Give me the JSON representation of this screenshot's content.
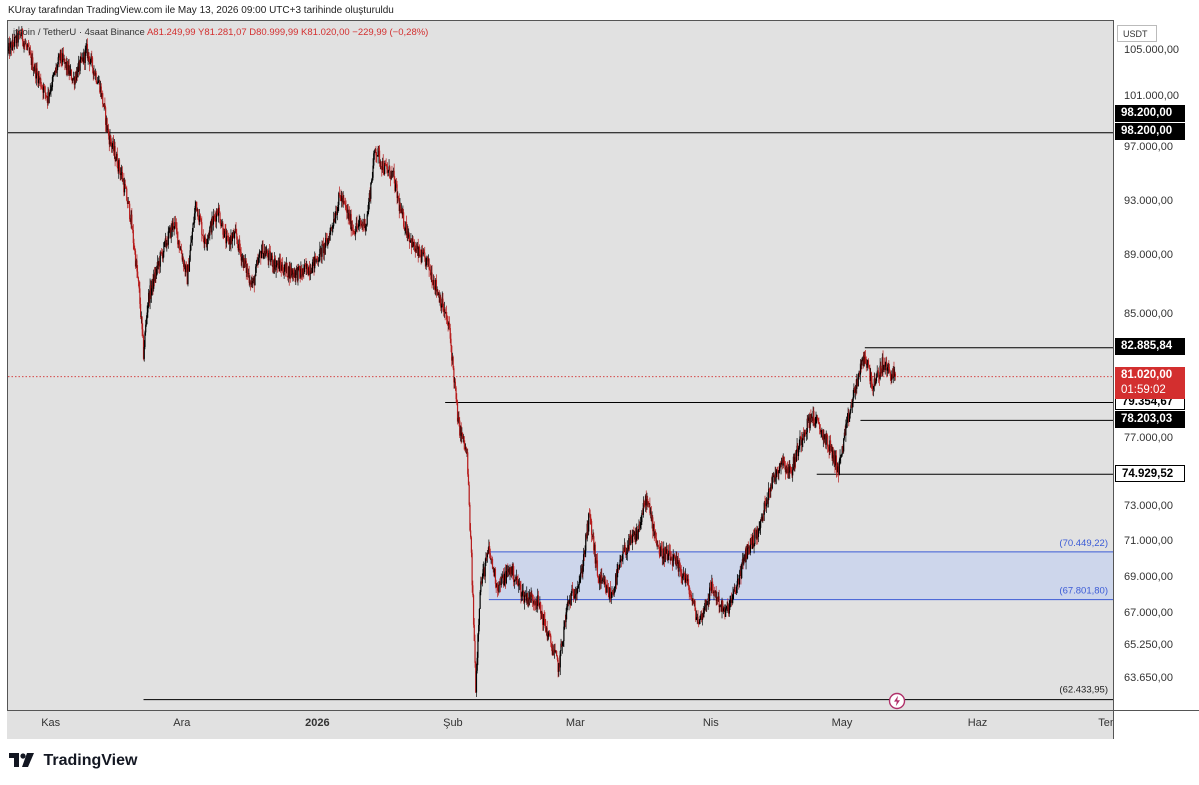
{
  "caption": "KUray tarafından TradingView.com ile May 13, 2026 09:00 UTC+3 tarihinde oluşturuldu",
  "symbol": "itcoin / TetherU · 4saat Binance",
  "ohlc": "A81.249,99 Y81.281,07 D80.999,99 K81.020,00 −229,99 (−0,28%)",
  "currency": "USDT",
  "brand": "TradingView",
  "colors": {
    "up": "#000000",
    "down": "#b71c1c",
    "zone_fill": "#c9d3ec",
    "zone_border": "#3b5bd6",
    "last_price": "#d32f2f"
  },
  "chart_data": {
    "type": "candlestick",
    "title": "",
    "ylim": [
      62000,
      107500
    ],
    "yticks": [
      {
        "value": 63650,
        "label": "63.650,00"
      },
      {
        "value": 65250,
        "label": "65.250,00"
      },
      {
        "value": 67000,
        "label": "67.000,00"
      },
      {
        "value": 69000,
        "label": "69.000,00"
      },
      {
        "value": 71000,
        "label": "71.000,00"
      },
      {
        "value": 73000,
        "label": "73.000,00"
      },
      {
        "value": 77000,
        "label": "77.000,00"
      },
      {
        "value": 85000,
        "label": "85.000,00"
      },
      {
        "value": 89000,
        "label": "89.000,00"
      },
      {
        "value": 93000,
        "label": "93.000,00"
      },
      {
        "value": 97000,
        "label": "97.000,00"
      },
      {
        "value": 101000,
        "label": "101.000,00"
      },
      {
        "value": 105000,
        "label": "105.000,00"
      }
    ],
    "xticks": [
      {
        "date": "2025-11-01",
        "label": "Kas",
        "bold": false
      },
      {
        "date": "2025-12-01",
        "label": "Ara",
        "bold": false
      },
      {
        "date": "2026-01-01",
        "label": "2026",
        "bold": true
      },
      {
        "date": "2026-02-01",
        "label": "Şub",
        "bold": false
      },
      {
        "date": "2026-03-01",
        "label": "Mar",
        "bold": false
      },
      {
        "date": "2026-04-01",
        "label": "Nis",
        "bold": false
      },
      {
        "date": "2026-05-01",
        "label": "May",
        "bold": false
      },
      {
        "date": "2026-06-01",
        "label": "Haz",
        "bold": false
      },
      {
        "date": "2026-07-01",
        "label": "Tem",
        "bold": false
      }
    ],
    "xlim": [
      "2025-10-22",
      "2026-07-02"
    ],
    "price_path": [
      [
        "2025-10-22",
        105000
      ],
      [
        "2025-10-25",
        106500
      ],
      [
        "2025-10-28",
        103500
      ],
      [
        "2025-10-31",
        101000
      ],
      [
        "2025-11-03",
        104500
      ],
      [
        "2025-11-06",
        102500
      ],
      [
        "2025-11-09",
        105000
      ],
      [
        "2025-11-12",
        102000
      ],
      [
        "2025-11-14",
        98000
      ],
      [
        "2025-11-17",
        95000
      ],
      [
        "2025-11-19",
        92000
      ],
      [
        "2025-11-21",
        86500
      ],
      [
        "2025-11-22",
        82500
      ],
      [
        "2025-11-23",
        86000
      ],
      [
        "2025-11-26",
        89000
      ],
      [
        "2025-11-29",
        91500
      ],
      [
        "2025-12-02",
        87500
      ],
      [
        "2025-12-04",
        93000
      ],
      [
        "2025-12-06",
        90000
      ],
      [
        "2025-12-09",
        92500
      ],
      [
        "2025-12-11",
        90000
      ],
      [
        "2025-12-13",
        90500
      ],
      [
        "2025-12-15",
        88500
      ],
      [
        "2025-12-17",
        87000
      ],
      [
        "2025-12-19",
        89500
      ],
      [
        "2025-12-22",
        88500
      ],
      [
        "2025-12-25",
        88000
      ],
      [
        "2025-12-28",
        87800
      ],
      [
        "2025-12-31",
        88500
      ],
      [
        "2026-01-03",
        90000
      ],
      [
        "2026-01-06",
        93500
      ],
      [
        "2026-01-09",
        91000
      ],
      [
        "2026-01-12",
        91500
      ],
      [
        "2026-01-14",
        97000
      ],
      [
        "2026-01-16",
        95500
      ],
      [
        "2026-01-18",
        95000
      ],
      [
        "2026-01-20",
        92000
      ],
      [
        "2026-01-23",
        89500
      ],
      [
        "2026-01-26",
        88500
      ],
      [
        "2026-01-29",
        86000
      ],
      [
        "2026-01-31",
        84000
      ],
      [
        "2026-02-02",
        78000
      ],
      [
        "2026-02-04",
        76000
      ],
      [
        "2026-02-05",
        70000
      ],
      [
        "2026-02-06",
        63200
      ],
      [
        "2026-02-07",
        68500
      ],
      [
        "2026-02-09",
        70500
      ],
      [
        "2026-02-11",
        68500
      ],
      [
        "2026-02-14",
        69500
      ],
      [
        "2026-02-17",
        68000
      ],
      [
        "2026-02-20",
        67800
      ],
      [
        "2026-02-23",
        65500
      ],
      [
        "2026-02-25",
        64200
      ],
      [
        "2026-02-27",
        67500
      ],
      [
        "2026-03-02",
        69000
      ],
      [
        "2026-03-04",
        72500
      ],
      [
        "2026-03-06",
        69000
      ],
      [
        "2026-03-09",
        68000
      ],
      [
        "2026-03-12",
        70500
      ],
      [
        "2026-03-15",
        71500
      ],
      [
        "2026-03-17",
        73500
      ],
      [
        "2026-03-20",
        70500
      ],
      [
        "2026-03-23",
        70000
      ],
      [
        "2026-03-26",
        69000
      ],
      [
        "2026-03-29",
        66500
      ],
      [
        "2026-04-01",
        68500
      ],
      [
        "2026-04-04",
        67000
      ],
      [
        "2026-04-06",
        68000
      ],
      [
        "2026-04-09",
        70500
      ],
      [
        "2026-04-12",
        71800
      ],
      [
        "2026-04-14",
        74000
      ],
      [
        "2026-04-17",
        75800
      ],
      [
        "2026-04-19",
        75000
      ],
      [
        "2026-04-22",
        77500
      ],
      [
        "2026-04-24",
        78500
      ],
      [
        "2026-04-26",
        77500
      ],
      [
        "2026-04-28",
        76500
      ],
      [
        "2026-04-30",
        75200
      ],
      [
        "2026-05-02",
        78000
      ],
      [
        "2026-05-04",
        80500
      ],
      [
        "2026-05-06",
        82400
      ],
      [
        "2026-05-08",
        80300
      ],
      [
        "2026-05-10",
        81800
      ],
      [
        "2026-05-13",
        81020
      ]
    ],
    "horizontal_levels": [
      {
        "value": 98200,
        "label": "98.200,00",
        "start": "2025-10-22",
        "tag_style": "black"
      },
      {
        "value": 82885.84,
        "label": "82.885,84",
        "start": "2026-05-06",
        "tag_style": "black"
      },
      {
        "value": 79354.67,
        "label": "79.354,67",
        "start": "2026-01-30",
        "tag_style": "white"
      },
      {
        "value": 78203.03,
        "label": "78.203,03",
        "start": "2026-05-05",
        "tag_style": "black"
      },
      {
        "value": 74929.52,
        "label": "74.929,52",
        "start": "2026-04-25",
        "tag_style": "white"
      },
      {
        "value": 62433.95,
        "label": "(62.433,95)",
        "start": "2025-11-22",
        "tag_style": "none"
      }
    ],
    "zone": {
      "top": 70449.22,
      "bottom": 67801.8,
      "top_label": "(70.449,22)",
      "bottom_label": "(67.801,80)",
      "start": "2026-02-09"
    },
    "last_price": {
      "value": 81020,
      "label": "81.020,00",
      "countdown": "01:59:02"
    },
    "top_tag": {
      "label": "98.200,00"
    }
  }
}
